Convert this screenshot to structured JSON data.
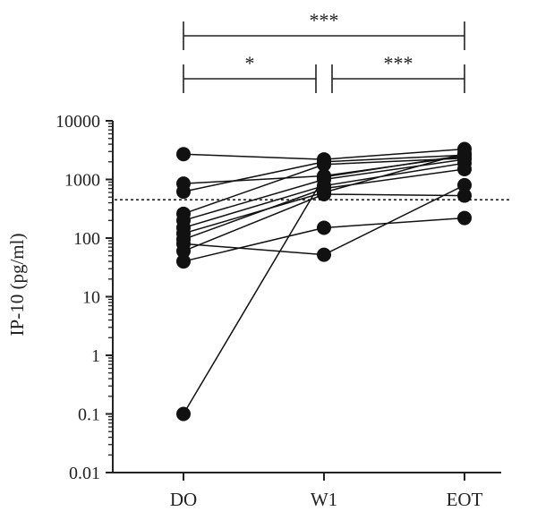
{
  "chart_data": {
    "type": "scatter",
    "ylabel": "IP-10 (pg/ml)",
    "xlabel": "",
    "y_scale": "log",
    "ylim": [
      0.01,
      10000
    ],
    "categories": [
      "DO",
      "W1",
      "EOT"
    ],
    "yticks": [
      {
        "value": 0.01,
        "label": "0.01"
      },
      {
        "value": 0.1,
        "label": "0.1"
      },
      {
        "value": 1,
        "label": "1"
      },
      {
        "value": 10,
        "label": "10"
      },
      {
        "value": 100,
        "label": "100"
      },
      {
        "value": 1000,
        "label": "1000"
      },
      {
        "value": 10000,
        "label": "10000"
      }
    ],
    "threshold": 450,
    "threshold_style": "dotted",
    "series": [
      {
        "values": [
          2700,
          2200,
          3300
        ]
      },
      {
        "values": [
          850,
          1150,
          2500
        ]
      },
      {
        "values": [
          620,
          2000,
          2600
        ]
      },
      {
        "values": [
          260,
          1800,
          2300
        ]
      },
      {
        "values": [
          200,
          1000,
          2200
        ]
      },
      {
        "values": [
          150,
          780,
          1900
        ]
      },
      {
        "values": [
          120,
          600,
          2800
        ]
      },
      {
        "values": [
          95,
          700,
          1500
        ]
      },
      {
        "values": [
          80,
          52,
          800
        ]
      },
      {
        "values": [
          60,
          560,
          530
        ]
      },
      {
        "values": [
          40,
          150,
          220
        ]
      },
      {
        "values": [
          0.1,
          1100,
          2600
        ]
      }
    ],
    "significance": [
      {
        "from": "DO",
        "to": "EOT",
        "label": "***"
      },
      {
        "from": "DO",
        "to": "W1",
        "label": "*"
      },
      {
        "from": "W1",
        "to": "EOT",
        "label": "***"
      }
    ]
  }
}
